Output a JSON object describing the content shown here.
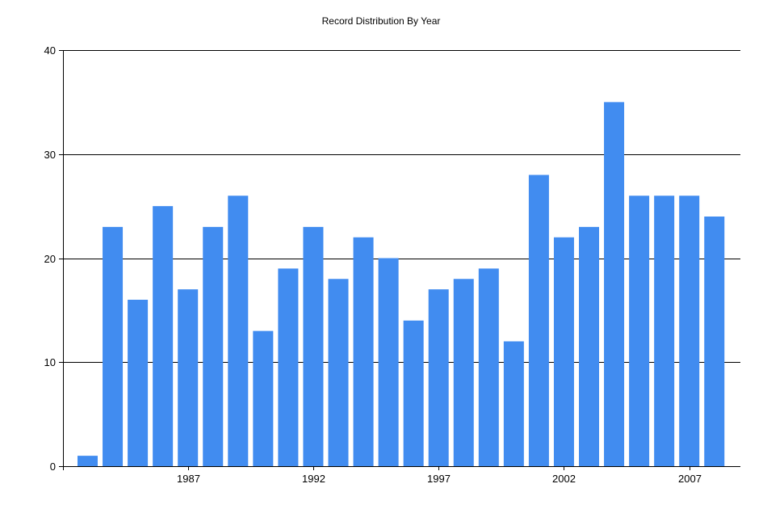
{
  "chart_data": {
    "type": "bar",
    "title": "Record Distribution By Year",
    "xlabel": "",
    "ylabel": "",
    "x": [
      1983,
      1984,
      1985,
      1986,
      1987,
      1988,
      1989,
      1990,
      1991,
      1992,
      1993,
      1994,
      1995,
      1996,
      1997,
      1998,
      1999,
      2000,
      2001,
      2002,
      2003,
      2004,
      2005,
      2006,
      2007,
      2008
    ],
    "values": [
      1,
      23,
      16,
      25,
      17,
      23,
      26,
      13,
      19,
      23,
      18,
      22,
      20,
      14,
      17,
      18,
      19,
      12,
      28,
      22,
      23,
      35,
      26,
      26,
      26,
      24
    ],
    "ylim": [
      0,
      40
    ],
    "y_ticks": [
      "0",
      "10",
      "20",
      "30",
      "40"
    ],
    "x_tick_years": [
      1987,
      1992,
      1997,
      2002,
      2007
    ],
    "x_tick_labels": [
      "1987",
      "1992",
      "1997",
      "2002",
      "2007"
    ],
    "grid": true,
    "bar_color": "#418CF0",
    "legend": "none"
  }
}
